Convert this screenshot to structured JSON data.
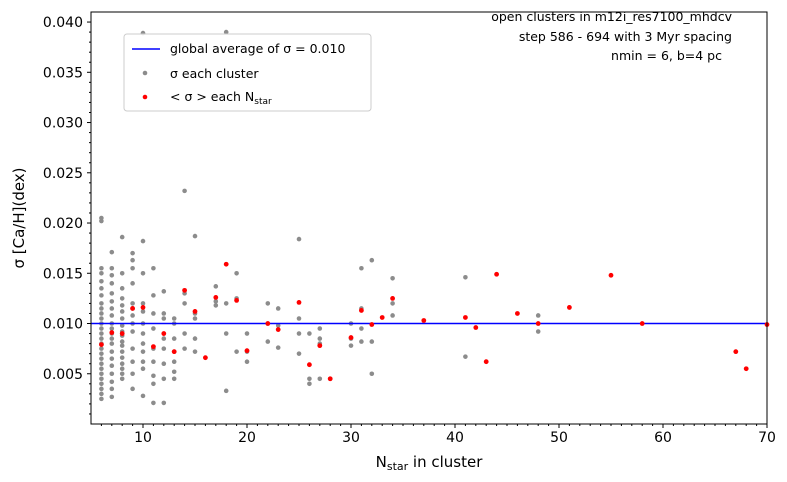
{
  "chart_data": {
    "type": "scatter",
    "title": "",
    "annotations": [
      "open clusters in m12i_res7100_mhdcv",
      "step 586 - 694 with 3 Myr spacing",
      "nmin = 6, b=4 pc"
    ],
    "xlabel": {
      "main": "N",
      "sub": "star",
      "rest": " in cluster"
    },
    "ylabel": "σ [Ca/H](dex)",
    "xlim": [
      5,
      70
    ],
    "ylim": [
      0.0,
      0.041
    ],
    "xticks": [
      10,
      20,
      30,
      40,
      50,
      60,
      70
    ],
    "yticks": [
      0.005,
      0.01,
      0.015,
      0.02,
      0.025,
      0.03,
      0.035,
      0.04
    ],
    "ytick_labels": [
      "0.005",
      "0.010",
      "0.015",
      "0.020",
      "0.025",
      "0.030",
      "0.035",
      "0.040"
    ],
    "grid": false,
    "legend_position": "upper-left",
    "legend": {
      "line": "global average of σ = 0.010",
      "gray": "σ each cluster",
      "red_prefix": "< σ > each N",
      "red_sub": "star"
    },
    "global_average": 0.01,
    "colors": {
      "line": "#0000ff",
      "gray": "#8c8c8c",
      "red": "#ff0000"
    },
    "series": [
      {
        "name": "σ each cluster",
        "points": [
          [
            6,
            0.0205
          ],
          [
            6,
            0.0202
          ],
          [
            6,
            0.0155
          ],
          [
            6,
            0.015
          ],
          [
            6,
            0.0142
          ],
          [
            6,
            0.0135
          ],
          [
            6,
            0.0128
          ],
          [
            6,
            0.012
          ],
          [
            6,
            0.0115
          ],
          [
            6,
            0.011
          ],
          [
            6,
            0.0105
          ],
          [
            6,
            0.01
          ],
          [
            6,
            0.0095
          ],
          [
            6,
            0.009
          ],
          [
            6,
            0.0085
          ],
          [
            6,
            0.008
          ],
          [
            6,
            0.0075
          ],
          [
            6,
            0.007
          ],
          [
            6,
            0.0065
          ],
          [
            6,
            0.006
          ],
          [
            6,
            0.0055
          ],
          [
            6,
            0.005
          ],
          [
            6,
            0.0045
          ],
          [
            6,
            0.004
          ],
          [
            6,
            0.0035
          ],
          [
            6,
            0.003
          ],
          [
            6,
            0.0025
          ],
          [
            7,
            0.0155
          ],
          [
            7,
            0.0148
          ],
          [
            7,
            0.014
          ],
          [
            7,
            0.013
          ],
          [
            7,
            0.0122
          ],
          [
            7,
            0.0115
          ],
          [
            7,
            0.0108
          ],
          [
            7,
            0.01
          ],
          [
            7,
            0.0095
          ],
          [
            7,
            0.009
          ],
          [
            7,
            0.0085
          ],
          [
            7,
            0.008
          ],
          [
            7,
            0.0072
          ],
          [
            7,
            0.0065
          ],
          [
            7,
            0.0058
          ],
          [
            7,
            0.005
          ],
          [
            7,
            0.0042
          ],
          [
            7,
            0.0035
          ],
          [
            7,
            0.0027
          ],
          [
            7,
            0.0171
          ],
          [
            8,
            0.0186
          ],
          [
            8,
            0.015
          ],
          [
            8,
            0.0135
          ],
          [
            8,
            0.0125
          ],
          [
            8,
            0.0118
          ],
          [
            8,
            0.0112
          ],
          [
            8,
            0.0105
          ],
          [
            8,
            0.0098
          ],
          [
            8,
            0.0092
          ],
          [
            8,
            0.0088
          ],
          [
            8,
            0.0082
          ],
          [
            8,
            0.0078
          ],
          [
            8,
            0.0072
          ],
          [
            8,
            0.0066
          ],
          [
            8,
            0.006
          ],
          [
            8,
            0.0055
          ],
          [
            8,
            0.005
          ],
          [
            8,
            0.0045
          ],
          [
            9,
            0.017
          ],
          [
            9,
            0.0163
          ],
          [
            9,
            0.0155
          ],
          [
            9,
            0.014
          ],
          [
            9,
            0.012
          ],
          [
            9,
            0.0115
          ],
          [
            9,
            0.0108
          ],
          [
            9,
            0.01
          ],
          [
            9,
            0.0092
          ],
          [
            9,
            0.0075
          ],
          [
            9,
            0.0062
          ],
          [
            9,
            0.005
          ],
          [
            9,
            0.0035
          ],
          [
            10,
            0.0389
          ],
          [
            10,
            0.0182
          ],
          [
            10,
            0.015
          ],
          [
            10,
            0.012
          ],
          [
            10,
            0.0112
          ],
          [
            10,
            0.01
          ],
          [
            10,
            0.009
          ],
          [
            10,
            0.008
          ],
          [
            10,
            0.0072
          ],
          [
            10,
            0.0062
          ],
          [
            10,
            0.0055
          ],
          [
            10,
            0.0028
          ],
          [
            11,
            0.0155
          ],
          [
            11,
            0.0128
          ],
          [
            11,
            0.011
          ],
          [
            11,
            0.0095
          ],
          [
            11,
            0.0075
          ],
          [
            11,
            0.0062
          ],
          [
            11,
            0.0048
          ],
          [
            11,
            0.004
          ],
          [
            11,
            0.0021
          ],
          [
            12,
            0.0132
          ],
          [
            12,
            0.011
          ],
          [
            12,
            0.0105
          ],
          [
            12,
            0.0085
          ],
          [
            12,
            0.0075
          ],
          [
            12,
            0.006
          ],
          [
            12,
            0.0045
          ],
          [
            12,
            0.0021
          ],
          [
            13,
            0.0105
          ],
          [
            13,
            0.01
          ],
          [
            13,
            0.0085
          ],
          [
            13,
            0.0072
          ],
          [
            13,
            0.0062
          ],
          [
            13,
            0.0052
          ],
          [
            13,
            0.0045
          ],
          [
            14,
            0.0232
          ],
          [
            14,
            0.013
          ],
          [
            14,
            0.012
          ],
          [
            14,
            0.009
          ],
          [
            14,
            0.0075
          ],
          [
            15,
            0.0187
          ],
          [
            15,
            0.011
          ],
          [
            15,
            0.0105
          ],
          [
            15,
            0.0085
          ],
          [
            15,
            0.0072
          ],
          [
            17,
            0.0137
          ],
          [
            17,
            0.0122
          ],
          [
            17,
            0.0118
          ],
          [
            18,
            0.039
          ],
          [
            18,
            0.012
          ],
          [
            18,
            0.009
          ],
          [
            18,
            0.0033
          ],
          [
            19,
            0.015
          ],
          [
            19,
            0.0125
          ],
          [
            19,
            0.0072
          ],
          [
            20,
            0.009
          ],
          [
            20,
            0.0072
          ],
          [
            20,
            0.0062
          ],
          [
            22,
            0.012
          ],
          [
            22,
            0.01
          ],
          [
            22,
            0.0082
          ],
          [
            23,
            0.0115
          ],
          [
            23,
            0.0098
          ],
          [
            23,
            0.0076
          ],
          [
            25,
            0.0184
          ],
          [
            25,
            0.0105
          ],
          [
            25,
            0.009
          ],
          [
            25,
            0.007
          ],
          [
            26,
            0.009
          ],
          [
            26,
            0.0045
          ],
          [
            26,
            0.004
          ],
          [
            27,
            0.0095
          ],
          [
            27,
            0.0085
          ],
          [
            27,
            0.008
          ],
          [
            27,
            0.0045
          ],
          [
            28,
            0.0045
          ],
          [
            30,
            0.01
          ],
          [
            30,
            0.0085
          ],
          [
            30,
            0.0078
          ],
          [
            31,
            0.0155
          ],
          [
            31,
            0.0115
          ],
          [
            31,
            0.0095
          ],
          [
            31,
            0.0082
          ],
          [
            32,
            0.0163
          ],
          [
            32,
            0.0082
          ],
          [
            32,
            0.005
          ],
          [
            34,
            0.0145
          ],
          [
            34,
            0.012
          ],
          [
            34,
            0.0108
          ],
          [
            41,
            0.0146
          ],
          [
            41,
            0.0067
          ],
          [
            48,
            0.0108
          ],
          [
            48,
            0.0092
          ]
        ]
      },
      {
        "name": "< σ > each N star",
        "points": [
          [
            6,
            0.0079
          ],
          [
            7,
            0.0091
          ],
          [
            8,
            0.009
          ],
          [
            9,
            0.0115
          ],
          [
            10,
            0.0116
          ],
          [
            11,
            0.0077
          ],
          [
            12,
            0.009
          ],
          [
            13,
            0.0072
          ],
          [
            14,
            0.0133
          ],
          [
            15,
            0.0112
          ],
          [
            16,
            0.0066
          ],
          [
            17,
            0.0126
          ],
          [
            18,
            0.0159
          ],
          [
            19,
            0.0123
          ],
          [
            20,
            0.0073
          ],
          [
            22,
            0.01
          ],
          [
            23,
            0.0094
          ],
          [
            25,
            0.0121
          ],
          [
            26,
            0.0059
          ],
          [
            27,
            0.0078
          ],
          [
            28,
            0.0045
          ],
          [
            30,
            0.0086
          ],
          [
            31,
            0.0113
          ],
          [
            32,
            0.0099
          ],
          [
            33,
            0.0106
          ],
          [
            34,
            0.0125
          ],
          [
            37,
            0.0103
          ],
          [
            41,
            0.0106
          ],
          [
            42,
            0.0096
          ],
          [
            43,
            0.0062
          ],
          [
            44,
            0.0149
          ],
          [
            46,
            0.011
          ],
          [
            48,
            0.01
          ],
          [
            51,
            0.0116
          ],
          [
            55,
            0.0148
          ],
          [
            58,
            0.01
          ],
          [
            67,
            0.0072
          ],
          [
            68,
            0.0055
          ],
          [
            70,
            0.0099
          ]
        ]
      }
    ]
  }
}
